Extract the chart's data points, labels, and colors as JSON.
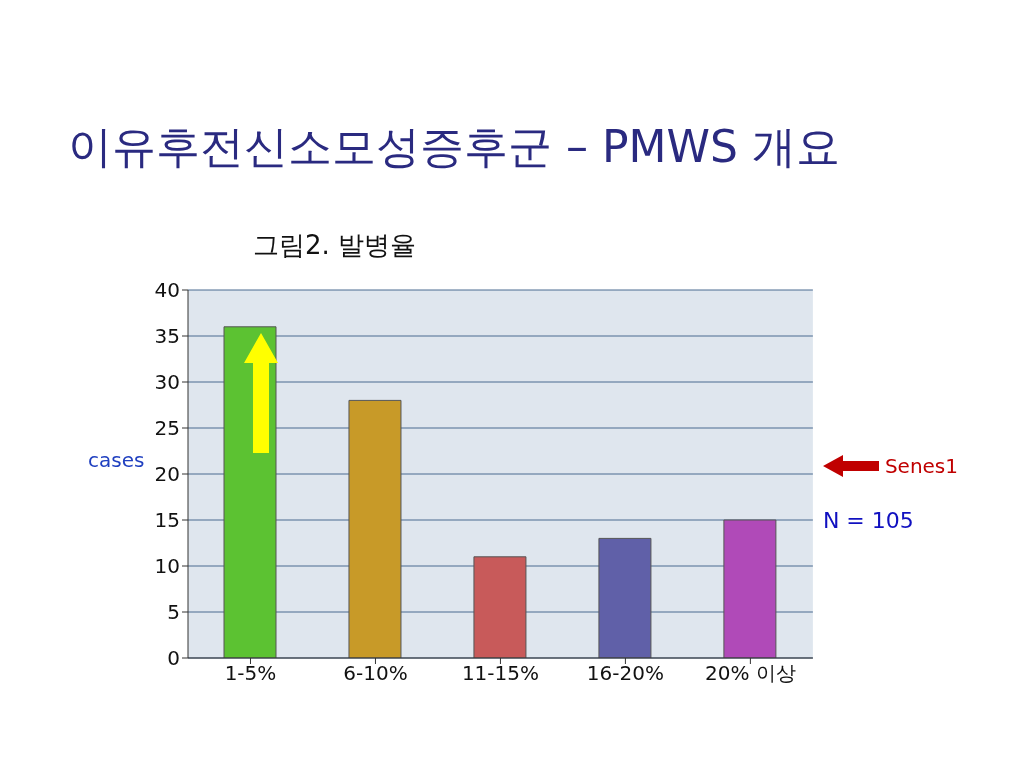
{
  "chart_data": {
    "type": "bar",
    "title": "이유후전신소모성증후군 – PMWS 개요",
    "subtitle": "그림2. 발병율",
    "ylabel": "cases",
    "categories": [
      "1-5%",
      "6-10%",
      "11-15%",
      "16-20%",
      "20% 이상"
    ],
    "series": [
      {
        "name": "Senes1",
        "colors": [
          "#5cc232",
          "#c89a28",
          "#c85a5a",
          "#6060a8",
          "#b04ab8"
        ],
        "values": [
          36,
          28,
          11,
          13,
          15
        ]
      }
    ],
    "ylim": [
      0,
      40
    ],
    "yticks": [
      0,
      5,
      10,
      15,
      20,
      25,
      30,
      35,
      40
    ],
    "grid": "y",
    "legend": "right",
    "annotations": [
      "N = 105"
    ]
  }
}
